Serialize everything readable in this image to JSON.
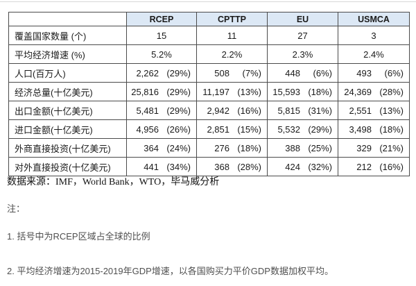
{
  "colors": {
    "header_bg": "#dce8f5",
    "border": "#4a4a4a",
    "note_text": "#4f4f4f"
  },
  "table": {
    "columns": [
      "RCEP",
      "CPTTP",
      "EU",
      "USMCA"
    ],
    "rows": [
      {
        "label": "覆盖国家数量 (个)",
        "type": "center",
        "values": [
          "15",
          "11",
          "27",
          "3"
        ]
      },
      {
        "label": "平均经济增速 (%)",
        "type": "center",
        "values": [
          "5.2%",
          "2.2%",
          "2.3%",
          "2.4%"
        ]
      },
      {
        "label": "人口(百万人)",
        "type": "split",
        "values": [
          [
            "2,262",
            "(29%)"
          ],
          [
            "508",
            "(7%)"
          ],
          [
            "448",
            "(6%)"
          ],
          [
            "493",
            "(6%)"
          ]
        ]
      },
      {
        "label": "经济总量(十亿美元)",
        "type": "split",
        "values": [
          [
            "25,816",
            "(29%)"
          ],
          [
            "11,197",
            "(13%)"
          ],
          [
            "15,593",
            "(18%)"
          ],
          [
            "24,369",
            "(28%)"
          ]
        ]
      },
      {
        "label": "出口金额(十亿美元)",
        "type": "split",
        "values": [
          [
            "5,481",
            "(29%)"
          ],
          [
            "2,942",
            "(16%)"
          ],
          [
            "5,815",
            "(31%)"
          ],
          [
            "2,551",
            "(13%)"
          ]
        ]
      },
      {
        "label": "进口金额(十亿美元)",
        "type": "split",
        "values": [
          [
            "4,956",
            "(26%)"
          ],
          [
            "2,851",
            "(15%)"
          ],
          [
            "5,532",
            "(29%)"
          ],
          [
            "3,498",
            "(18%)"
          ]
        ]
      },
      {
        "label": "外商直接投资(十亿美元)",
        "type": "split",
        "values": [
          [
            "364",
            "(24%)"
          ],
          [
            "276",
            "(18%)"
          ],
          [
            "388",
            "(25%)"
          ],
          [
            "329",
            "(21%)"
          ]
        ]
      },
      {
        "label": "对外直接投资(十亿美元)",
        "type": "split",
        "values": [
          [
            "441",
            "(34%)"
          ],
          [
            "368",
            "(28%)"
          ],
          [
            "424",
            "(32%)"
          ],
          [
            "212",
            "(16%)"
          ]
        ]
      }
    ]
  },
  "footer": {
    "source_line": "数据来源：IMF，World Bank，WTO，毕马威分析",
    "note_label": "注：",
    "notes": [
      "1. 括号中为RCEP区域占全球的比例",
      "2. 平均经济增速为2015-2019年GDP增速，以各国购买力平价GDP数据加权平均。"
    ]
  }
}
